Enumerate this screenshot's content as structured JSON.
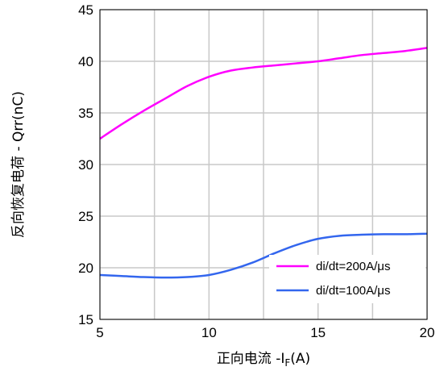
{
  "chart_data": {
    "type": "line",
    "xlabel_prefix": "正向电流 -I",
    "xlabel_subscript": "F",
    "xlabel_suffix": "(A)",
    "ylabel": "反向恢复电荷 - Qrr(nC)",
    "xlim": [
      5,
      20
    ],
    "ylim": [
      15,
      45
    ],
    "xticks": [
      5,
      10,
      15,
      20
    ],
    "yticks": [
      15,
      20,
      25,
      30,
      35,
      40,
      45
    ],
    "x_minor_grid": [
      7.5,
      12.5,
      17.5
    ],
    "grid": true,
    "legend_position": "bottom-right",
    "series": [
      {
        "name": "di/dt=200A/μs",
        "color": "#ff00ff",
        "points": [
          [
            5,
            32.5
          ],
          [
            6,
            33.9
          ],
          [
            7,
            35.2
          ],
          [
            8,
            36.4
          ],
          [
            9,
            37.6
          ],
          [
            10,
            38.5
          ],
          [
            11,
            39.1
          ],
          [
            12,
            39.4
          ],
          [
            13,
            39.6
          ],
          [
            14,
            39.8
          ],
          [
            15,
            40.0
          ],
          [
            16,
            40.3
          ],
          [
            17,
            40.6
          ],
          [
            18,
            40.8
          ],
          [
            19,
            41.0
          ],
          [
            20,
            41.3
          ]
        ]
      },
      {
        "name": "di/dt=100A/μs",
        "color": "#3366ee",
        "points": [
          [
            5,
            19.3
          ],
          [
            6,
            19.2
          ],
          [
            7,
            19.1
          ],
          [
            8,
            19.05
          ],
          [
            9,
            19.1
          ],
          [
            10,
            19.3
          ],
          [
            11,
            19.8
          ],
          [
            12,
            20.5
          ],
          [
            13,
            21.4
          ],
          [
            14,
            22.2
          ],
          [
            15,
            22.8
          ],
          [
            16,
            23.1
          ],
          [
            17,
            23.2
          ],
          [
            18,
            23.25
          ],
          [
            19,
            23.25
          ],
          [
            20,
            23.3
          ]
        ]
      }
    ]
  }
}
